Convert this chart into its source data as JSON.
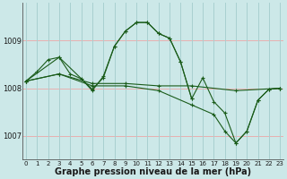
{
  "background_color": "#cce8e8",
  "plot_bg_color": "#cce8e8",
  "line_color": "#1a5c1a",
  "grid_color_h": "#e8b0b0",
  "grid_color_v": "#a8d0d0",
  "xlabel": "Graphe pression niveau de la mer (hPa)",
  "xlabel_fontsize": 7,
  "ylim": [
    1006.5,
    1009.8
  ],
  "xlim": [
    -0.3,
    23.3
  ],
  "yticks": [
    1007,
    1008,
    1009
  ],
  "xticks": [
    0,
    1,
    2,
    3,
    4,
    5,
    6,
    7,
    8,
    9,
    10,
    11,
    12,
    13,
    14,
    15,
    16,
    17,
    18,
    19,
    20,
    21,
    22,
    23
  ],
  "series": [
    {
      "x": [
        0,
        1,
        2,
        3,
        4,
        5,
        6,
        7,
        8,
        9,
        10,
        11,
        12,
        13,
        14,
        15,
        16,
        17,
        18,
        19,
        20,
        21,
        22,
        23
      ],
      "y": [
        1008.15,
        1008.35,
        1008.6,
        1008.65,
        1008.3,
        1008.2,
        1007.95,
        1008.25,
        1008.88,
        1009.2,
        1009.38,
        1009.38,
        1009.15,
        1009.05,
        1008.55,
        1007.78,
        1008.22,
        1007.72,
        1007.48,
        1006.85,
        1007.1,
        1007.75,
        1007.98,
        1008.0
      ]
    },
    {
      "x": [
        0,
        3,
        6,
        9,
        12,
        15,
        19,
        23
      ],
      "y": [
        1008.15,
        1008.3,
        1008.1,
        1008.1,
        1008.05,
        1008.05,
        1007.95,
        1008.0
      ]
    },
    {
      "x": [
        0,
        3,
        6,
        9,
        12,
        15,
        17,
        18,
        19,
        20,
        21,
        22,
        23
      ],
      "y": [
        1008.15,
        1008.3,
        1008.05,
        1008.05,
        1007.95,
        1007.65,
        1007.45,
        1007.1,
        1006.85,
        1007.1,
        1007.75,
        1007.98,
        1008.0
      ]
    },
    {
      "x": [
        0,
        3,
        6,
        7,
        8,
        9,
        10,
        11,
        12,
        13,
        14,
        15
      ],
      "y": [
        1008.15,
        1008.65,
        1007.98,
        1008.22,
        1008.88,
        1009.2,
        1009.38,
        1009.38,
        1009.15,
        1009.05,
        1008.55,
        1007.78
      ]
    }
  ]
}
